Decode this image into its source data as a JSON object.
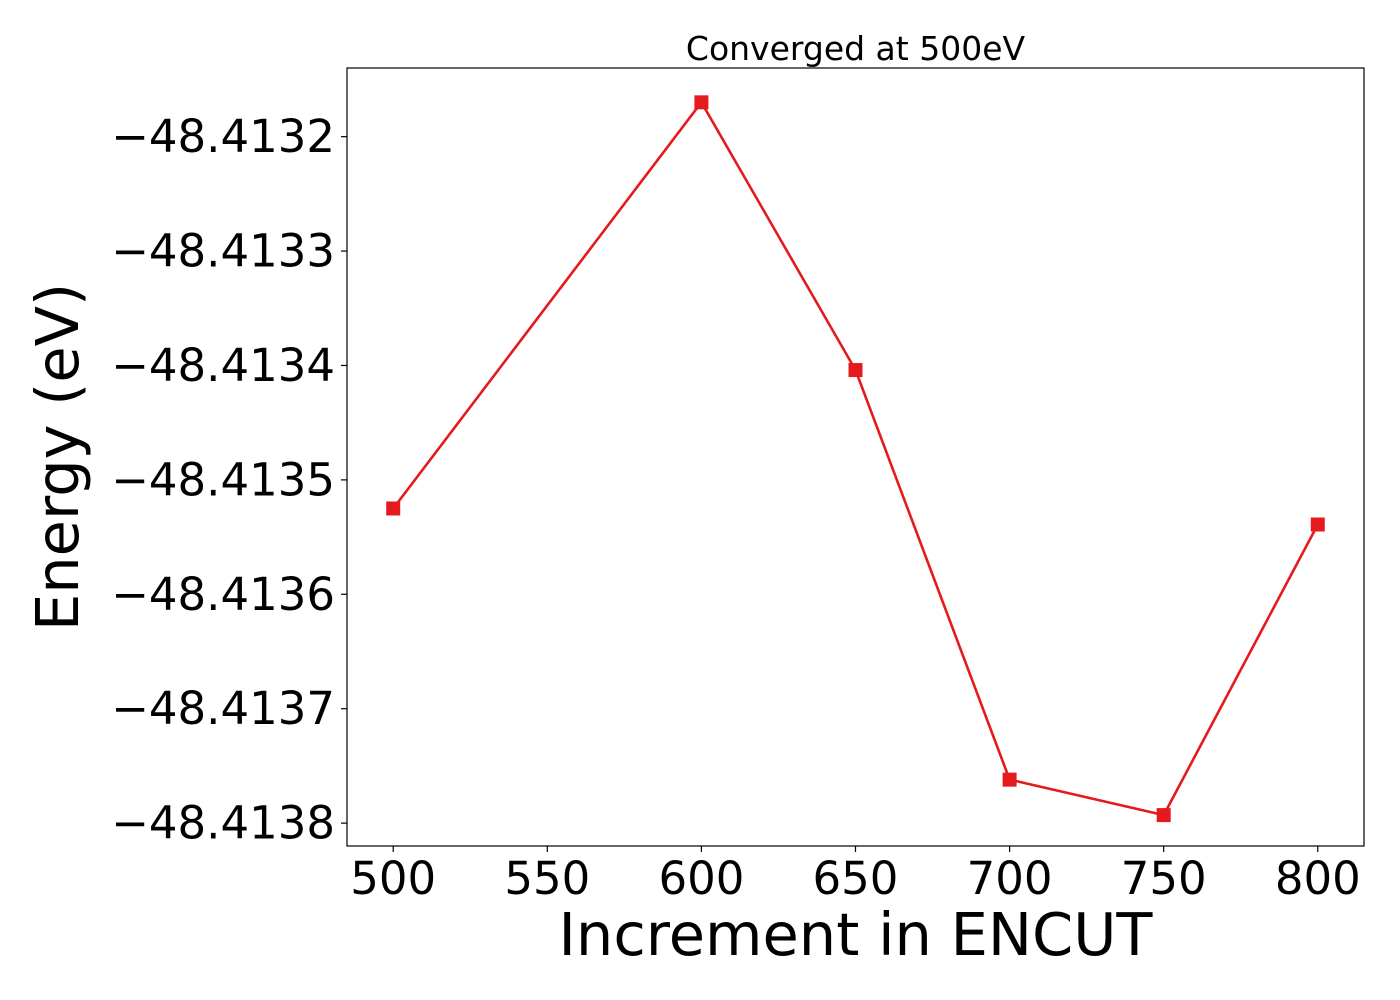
{
  "chart_data": {
    "type": "line",
    "title": "Converged at 500eV",
    "xlabel": "Increment in ENCUT",
    "ylabel": "Energy (eV)",
    "x": [
      500,
      600,
      650,
      700,
      750,
      800
    ],
    "series": [
      {
        "values": [
          -48.413525,
          -48.41317,
          -48.413404,
          -48.413762,
          -48.413793,
          -48.413539
        ],
        "color": "#e41a1c",
        "marker": "square"
      }
    ],
    "xticks": [
      500,
      550,
      600,
      650,
      700,
      750,
      800
    ],
    "yticks": [
      -48.4132,
      -48.4133,
      -48.4134,
      -48.4135,
      -48.4136,
      -48.4137,
      -48.4138
    ],
    "xtick_labels": [
      "500",
      "550",
      "600",
      "650",
      "700",
      "750",
      "800"
    ],
    "ytick_labels": [
      "−48.4132",
      "−48.4133",
      "−48.4134",
      "−48.4135",
      "−48.4136",
      "−48.4137",
      "−48.4138"
    ],
    "xlim": [
      485,
      815
    ],
    "ylim": [
      -48.41382,
      -48.41314
    ],
    "grid": false,
    "legend": "none"
  }
}
